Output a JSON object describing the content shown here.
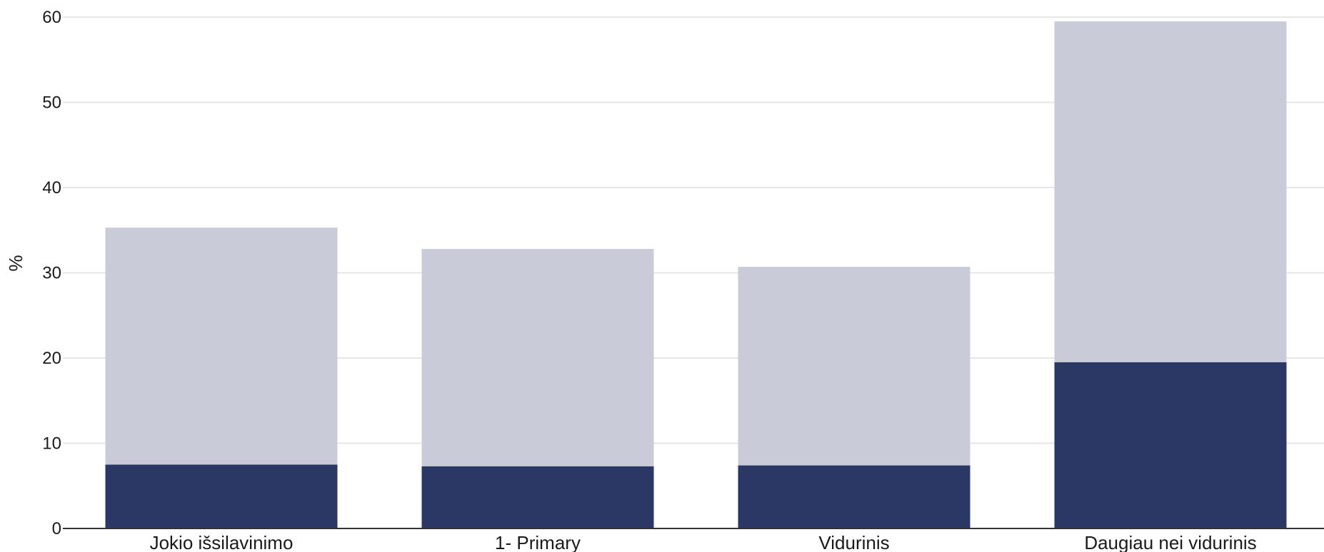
{
  "chart_data": {
    "type": "bar",
    "stacked": true,
    "categories": [
      "Jokio išsilavinimo",
      "1- Primary",
      "Vidurinis",
      "Daugiau nei vidurinis"
    ],
    "series": [
      {
        "values": [
          7.5,
          7.3,
          7.4,
          19.5
        ],
        "color": "#2b3764"
      },
      {
        "values": [
          27.8,
          25.5,
          23.3,
          40.0
        ],
        "color": "#c9ccd8"
      }
    ],
    "ylabel": "%",
    "ylim": [
      0,
      60
    ],
    "yticks": [
      0,
      10,
      20,
      30,
      40,
      50,
      60
    ],
    "grid": true,
    "gridColor": "#e6e6e6",
    "axisColor": "#333333"
  }
}
